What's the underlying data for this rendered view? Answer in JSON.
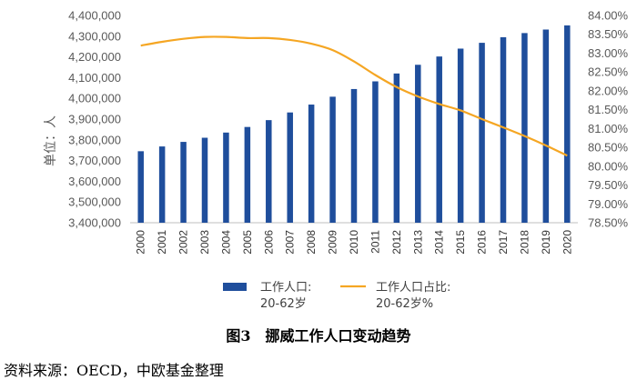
{
  "chart_data": {
    "type": "bar+line",
    "title": "图3　挪威工作人口变动趋势",
    "ylabel": "单位：人",
    "categories": [
      "2000",
      "2001",
      "2002",
      "2003",
      "2004",
      "2005",
      "2006",
      "2007",
      "2008",
      "2009",
      "2010",
      "2011",
      "2012",
      "2013",
      "2014",
      "2015",
      "2016",
      "2017",
      "2018",
      "2019",
      "2020"
    ],
    "y_left": {
      "ylim": [
        3400000,
        4400000
      ],
      "ticks": [
        3400000,
        3500000,
        3600000,
        3700000,
        3800000,
        3900000,
        4000000,
        4100000,
        4200000,
        4300000,
        4400000
      ],
      "tick_labels": [
        "3,400,000",
        "3,500,000",
        "3,600,000",
        "3,700,000",
        "3,800,000",
        "3,900,000",
        "4,000,000",
        "4,100,000",
        "4,200,000",
        "4,300,000",
        "4,400,000"
      ]
    },
    "y_right": {
      "ylim": [
        78.5,
        84.0
      ],
      "ticks": [
        78.5,
        79.0,
        79.5,
        80.0,
        80.5,
        81.0,
        81.5,
        82.0,
        82.5,
        83.0,
        83.5,
        84.0
      ],
      "tick_labels": [
        "78.50%",
        "79.00%",
        "79.50%",
        "80.00%",
        "80.50%",
        "81.00%",
        "81.50%",
        "82.00%",
        "82.50%",
        "83.00%",
        "83.50%",
        "84.00%"
      ]
    },
    "series": [
      {
        "name": "工作人口: 20-62岁",
        "legend_lines": [
          "工作人口:",
          "20-62岁"
        ],
        "type": "bar",
        "axis": "left",
        "color": "#1f4e9c",
        "values": [
          3745000,
          3768000,
          3790000,
          3810000,
          3835000,
          3862000,
          3895000,
          3932000,
          3970000,
          4008000,
          4045000,
          4082000,
          4120000,
          4162000,
          4202000,
          4240000,
          4268000,
          4295000,
          4315000,
          4332000,
          4352000
        ]
      },
      {
        "name": "工作人口占比: 20-62岁%",
        "legend_lines": [
          "工作人口占比:",
          "20-62岁%"
        ],
        "type": "line",
        "axis": "right",
        "color": "#f5a623",
        "values": [
          83.2,
          83.3,
          83.38,
          83.43,
          83.43,
          83.4,
          83.4,
          83.35,
          83.25,
          83.08,
          82.78,
          82.42,
          82.1,
          81.85,
          81.65,
          81.48,
          81.25,
          81.03,
          80.8,
          80.55,
          80.28
        ]
      }
    ],
    "source": "资料来源：OECD，中欧基金整理"
  }
}
